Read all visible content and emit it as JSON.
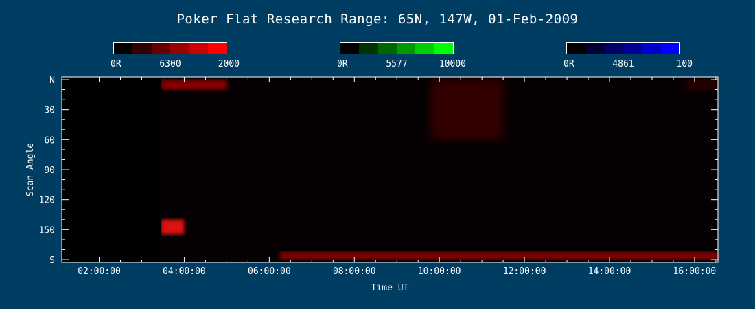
{
  "title": "Poker Flat Research Range: 65N, 147W, 01-Feb-2009",
  "colorbars": [
    {
      "name": "6300",
      "min_label": "0R",
      "mid_label": "6300",
      "max_label": "2000",
      "colors": [
        "#000000",
        "#330000",
        "#660000",
        "#990000",
        "#cc0000",
        "#ff0000"
      ]
    },
    {
      "name": "5577",
      "min_label": "0R",
      "mid_label": "5577",
      "max_label": "10000",
      "colors": [
        "#000000",
        "#003300",
        "#006600",
        "#009900",
        "#00cc00",
        "#00ff00"
      ]
    },
    {
      "name": "4861",
      "min_label": "0R",
      "mid_label": "4861",
      "max_label": "100",
      "colors": [
        "#000000",
        "#000033",
        "#000066",
        "#000099",
        "#0000cc",
        "#0000ff"
      ]
    }
  ],
  "chart_data": {
    "type": "heatmap",
    "xlabel": "Time UT",
    "ylabel": "Scan Angle",
    "xlim_hours": [
      1.12,
      16.55
    ],
    "ylim_deg": [
      0,
      180
    ],
    "x_ticks": [
      "02:00:00",
      "04:00:00",
      "06:00:00",
      "08:00:00",
      "10:00:00",
      "12:00:00",
      "14:00:00",
      "16:00:00"
    ],
    "y_ticks": [
      "N",
      "30",
      "60",
      "90",
      "120",
      "150",
      "S"
    ],
    "y_tick_values": [
      0,
      30,
      60,
      90,
      120,
      150,
      180
    ],
    "no_data_before_hour": 3.45,
    "features": [
      {
        "channel": "6300",
        "from_hour": 3.45,
        "to_hour": 5.0,
        "from_deg": 0,
        "to_deg": 10,
        "level": "moderate"
      },
      {
        "channel": "6300",
        "from_hour": 9.8,
        "to_hour": 11.5,
        "from_deg": 0,
        "to_deg": 60,
        "level": "weak"
      },
      {
        "channel": "6300",
        "from_hour": 3.45,
        "to_hour": 4.0,
        "from_deg": 140,
        "to_deg": 155,
        "level": "strong"
      },
      {
        "channel": "6300",
        "from_hour": 6.25,
        "to_hour": 16.55,
        "from_deg": 172,
        "to_deg": 180,
        "level": "moderate"
      },
      {
        "channel": "6300",
        "from_hour": 15.8,
        "to_hour": 16.55,
        "from_deg": 0,
        "to_deg": 10,
        "level": "weak"
      }
    ]
  }
}
